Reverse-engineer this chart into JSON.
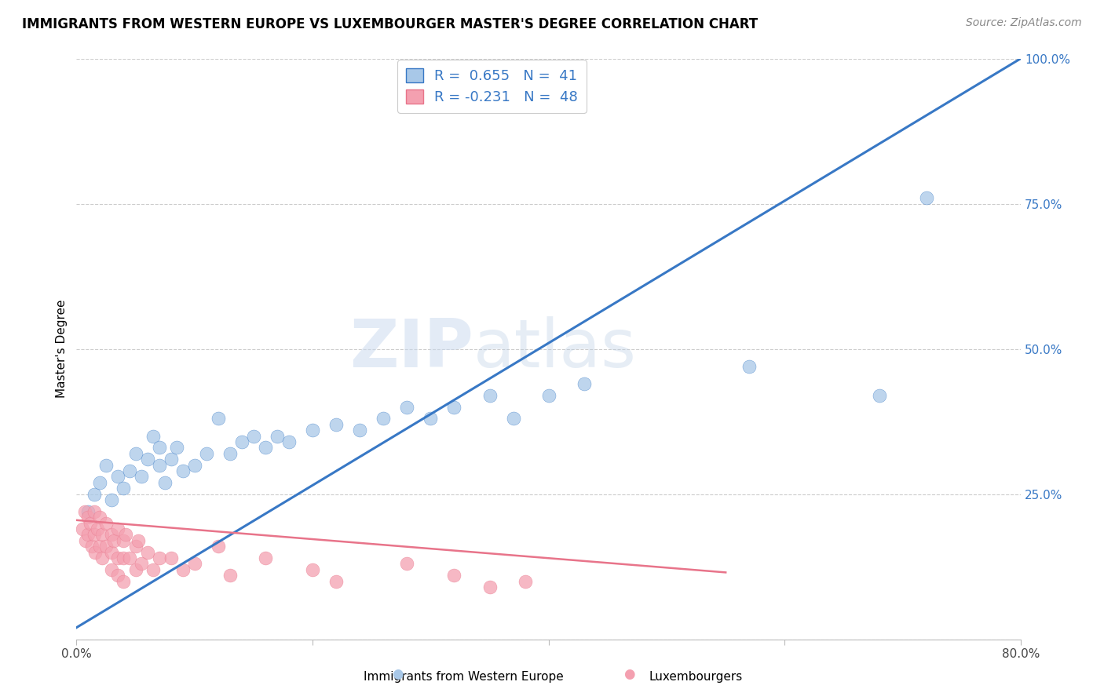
{
  "title": "IMMIGRANTS FROM WESTERN EUROPE VS LUXEMBOURGER MASTER'S DEGREE CORRELATION CHART",
  "source_text": "Source: ZipAtlas.com",
  "ylabel": "Master's Degree",
  "watermark": "ZIPatlas",
  "xlim": [
    0.0,
    0.8
  ],
  "ylim": [
    0.0,
    1.0
  ],
  "blue_R": 0.655,
  "blue_N": 41,
  "pink_R": -0.231,
  "pink_N": 48,
  "blue_scatter_x": [
    0.01,
    0.015,
    0.02,
    0.025,
    0.03,
    0.035,
    0.04,
    0.045,
    0.05,
    0.055,
    0.06,
    0.065,
    0.07,
    0.07,
    0.075,
    0.08,
    0.085,
    0.09,
    0.1,
    0.11,
    0.12,
    0.13,
    0.14,
    0.15,
    0.16,
    0.17,
    0.18,
    0.2,
    0.22,
    0.24,
    0.26,
    0.28,
    0.3,
    0.32,
    0.35,
    0.37,
    0.4,
    0.43,
    0.57,
    0.68,
    0.72
  ],
  "blue_scatter_y": [
    0.22,
    0.25,
    0.27,
    0.3,
    0.24,
    0.28,
    0.26,
    0.29,
    0.32,
    0.28,
    0.31,
    0.35,
    0.3,
    0.33,
    0.27,
    0.31,
    0.33,
    0.29,
    0.3,
    0.32,
    0.38,
    0.32,
    0.34,
    0.35,
    0.33,
    0.35,
    0.34,
    0.36,
    0.37,
    0.36,
    0.38,
    0.4,
    0.38,
    0.4,
    0.42,
    0.38,
    0.42,
    0.44,
    0.47,
    0.42,
    0.76
  ],
  "pink_scatter_x": [
    0.005,
    0.007,
    0.008,
    0.01,
    0.01,
    0.012,
    0.013,
    0.015,
    0.015,
    0.016,
    0.018,
    0.02,
    0.02,
    0.022,
    0.022,
    0.025,
    0.025,
    0.03,
    0.03,
    0.03,
    0.032,
    0.035,
    0.035,
    0.035,
    0.04,
    0.04,
    0.04,
    0.042,
    0.045,
    0.05,
    0.05,
    0.052,
    0.055,
    0.06,
    0.065,
    0.07,
    0.08,
    0.09,
    0.1,
    0.12,
    0.13,
    0.16,
    0.2,
    0.22,
    0.28,
    0.32,
    0.35,
    0.38
  ],
  "pink_scatter_y": [
    0.19,
    0.22,
    0.17,
    0.21,
    0.18,
    0.2,
    0.16,
    0.22,
    0.18,
    0.15,
    0.19,
    0.21,
    0.16,
    0.18,
    0.14,
    0.2,
    0.16,
    0.18,
    0.15,
    0.12,
    0.17,
    0.19,
    0.14,
    0.11,
    0.17,
    0.14,
    0.1,
    0.18,
    0.14,
    0.16,
    0.12,
    0.17,
    0.13,
    0.15,
    0.12,
    0.14,
    0.14,
    0.12,
    0.13,
    0.16,
    0.11,
    0.14,
    0.12,
    0.1,
    0.13,
    0.11,
    0.09,
    0.1
  ],
  "blue_line_x": [
    0.0,
    0.8
  ],
  "blue_line_y": [
    0.02,
    1.0
  ],
  "pink_line_x": [
    0.0,
    0.55
  ],
  "pink_line_y": [
    0.205,
    0.115
  ],
  "blue_line_color": "#3878C5",
  "pink_line_color": "#E8748A",
  "blue_scatter_color": "#A8C8E8",
  "pink_scatter_color": "#F4A0B0",
  "grid_color": "#CCCCCC",
  "background_color": "#FFFFFF",
  "title_fontsize": 12,
  "axis_label_fontsize": 11,
  "tick_fontsize": 11,
  "legend_fontsize": 13,
  "source_fontsize": 10
}
